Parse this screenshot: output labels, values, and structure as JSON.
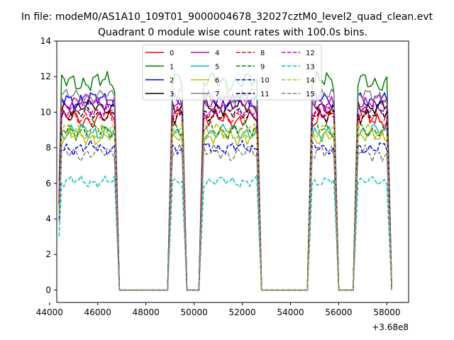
{
  "chart_data": {
    "type": "line",
    "suptitle": "In file: modeM0/AS1A10_109T01_9000004678_32027cztM0_level2_quad_clean.evt",
    "title": "Quadrant 0 module wise count rates with 100.0s bins.",
    "xlabel": "",
    "ylabel": "",
    "x_offset_label": "+3.68e8",
    "xlim": [
      44300,
      58900
    ],
    "ylim": [
      -0.7,
      14
    ],
    "xticks": [
      44000,
      46000,
      48000,
      50000,
      52000,
      54000,
      56000,
      58000
    ],
    "yticks": [
      0,
      2,
      4,
      6,
      8,
      10,
      12,
      14
    ],
    "grid": false,
    "legend_placement": "upper center, 4 columns",
    "bin_seconds": 100,
    "x_range": [
      44400,
      58200
    ],
    "time_segments": [
      {
        "start": 44400,
        "end": 46800
      },
      {
        "start": 49000,
        "end": 49600
      },
      {
        "start": 50300,
        "end": 52700
      },
      {
        "start": 54800,
        "end": 55900
      },
      {
        "start": 56700,
        "end": 58100
      }
    ],
    "series": [
      {
        "name": "0",
        "color": "#ff0000",
        "style": "solid",
        "level": 9.6,
        "noise": 0.5
      },
      {
        "name": "1",
        "color": "#008000",
        "style": "solid",
        "level": 11.7,
        "noise": 0.55
      },
      {
        "name": "2",
        "color": "#0000ff",
        "style": "solid",
        "level": 10.7,
        "noise": 0.45
      },
      {
        "name": "3",
        "color": "#000000",
        "style": "solid",
        "level": 10.3,
        "noise": 0.4
      },
      {
        "name": "4",
        "color": "#bf00bf",
        "style": "solid",
        "level": 10.6,
        "noise": 0.45
      },
      {
        "name": "5",
        "color": "#00bfbf",
        "style": "solid",
        "level": 8.9,
        "noise": 0.45
      },
      {
        "name": "6",
        "color": "#bfbf00",
        "style": "solid",
        "level": 8.6,
        "noise": 0.45
      },
      {
        "name": "7",
        "color": "#808080",
        "style": "solid",
        "level": 10.9,
        "noise": 0.4
      },
      {
        "name": "8",
        "color": "#ff0000",
        "style": "dashed",
        "level": 9.8,
        "noise": 0.45
      },
      {
        "name": "9",
        "color": "#008000",
        "style": "dashed",
        "level": 9.0,
        "noise": 0.45
      },
      {
        "name": "10",
        "color": "#0000ff",
        "style": "dashed",
        "level": 8.0,
        "noise": 0.35
      },
      {
        "name": "11",
        "color": "#000000",
        "style": "dashed",
        "level": 9.9,
        "noise": 0.4
      },
      {
        "name": "12",
        "color": "#bf00bf",
        "style": "dashed",
        "level": 10.1,
        "noise": 0.4
      },
      {
        "name": "13",
        "color": "#00bfbf",
        "style": "dashed",
        "level": 6.1,
        "noise": 0.3
      },
      {
        "name": "14",
        "color": "#bfbf00",
        "style": "dashed",
        "level": 8.9,
        "noise": 0.45
      },
      {
        "name": "15",
        "color": "#808080",
        "style": "dashed",
        "level": 7.7,
        "noise": 0.45
      }
    ]
  }
}
